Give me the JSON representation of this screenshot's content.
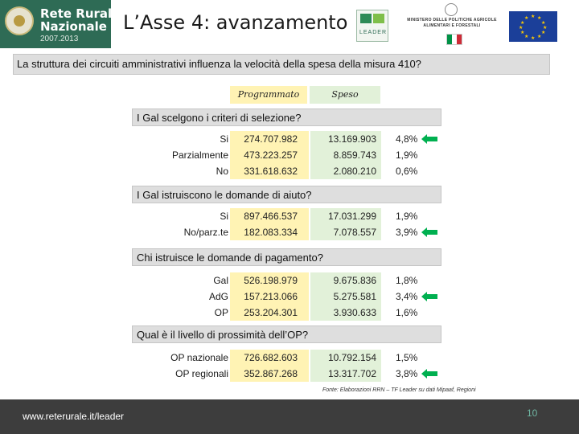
{
  "header": {
    "logo_line1": "Rete Rurale",
    "logo_line2": "Nazionale",
    "logo_years": "2007.2013",
    "title": "L’Asse 4: avanzamento",
    "leader_logo_text": "LEADER",
    "ministry_line1": "MINISTERO DELLE POLITICHE AGRICOLE",
    "ministry_line2": "ALIMENTARI E FORESTALI"
  },
  "colors": {
    "logo_bg": "#2e6b55",
    "programmato_bg": "#fff3b4",
    "speso_bg": "#e2f1d9",
    "header_bar_bg": "#dedede",
    "arrow": "#00b050",
    "footer_bg": "#3d3d3d",
    "page_number": "#6fb5a2"
  },
  "question": "La struttura dei circuiti amministrativi influenza la velocità della spesa della misura 410?",
  "legend": {
    "programmato": "Programmato",
    "speso": "Speso"
  },
  "sections": [
    {
      "title": "I Gal scelgono i criteri di selezione?",
      "rows": [
        {
          "label": "Si",
          "programmato": "274.707.982",
          "speso": "13.169.903",
          "percent": "4,8%",
          "highlight": true
        },
        {
          "label": "Parzialmente",
          "programmato": "473.223.257",
          "speso": "8.859.743",
          "percent": "1,9%",
          "highlight": false
        },
        {
          "label": "No",
          "programmato": "331.618.632",
          "speso": "2.080.210",
          "percent": "0,6%",
          "highlight": false
        }
      ]
    },
    {
      "title": "I Gal istruiscono le domande di aiuto?",
      "rows": [
        {
          "label": "Si",
          "programmato": "897.466.537",
          "speso": "17.031.299",
          "percent": "1,9%",
          "highlight": false
        },
        {
          "label": "No/parz.te",
          "programmato": "182.083.334",
          "speso": "7.078.557",
          "percent": "3,9%",
          "highlight": true
        }
      ]
    },
    {
      "title": "Chi istruisce le domande di pagamento?",
      "rows": [
        {
          "label": "Gal",
          "programmato": "526.198.979",
          "speso": "9.675.836",
          "percent": "1,8%",
          "highlight": false
        },
        {
          "label": "AdG",
          "programmato": "157.213.066",
          "speso": "5.275.581",
          "percent": "3,4%",
          "highlight": true
        },
        {
          "label": "OP",
          "programmato": "253.204.301",
          "speso": "3.930.633",
          "percent": "1,6%",
          "highlight": false
        }
      ]
    },
    {
      "title": "Qual è il livello di prossimità dell’OP?",
      "rows": [
        {
          "label": "OP nazionale",
          "programmato": "726.682.603",
          "speso": "10.792.154",
          "percent": "1,5%",
          "highlight": false
        },
        {
          "label": "OP regionali",
          "programmato": "352.867.268",
          "speso": "13.317.702",
          "percent": "3,8%",
          "highlight": true
        }
      ]
    }
  ],
  "source": "Fonte: Elaborazioni RRN – TF Leader su dati Mipaaf, Regioni",
  "footer": {
    "url": "www.reterurale.it/leader",
    "page_number": "10"
  }
}
